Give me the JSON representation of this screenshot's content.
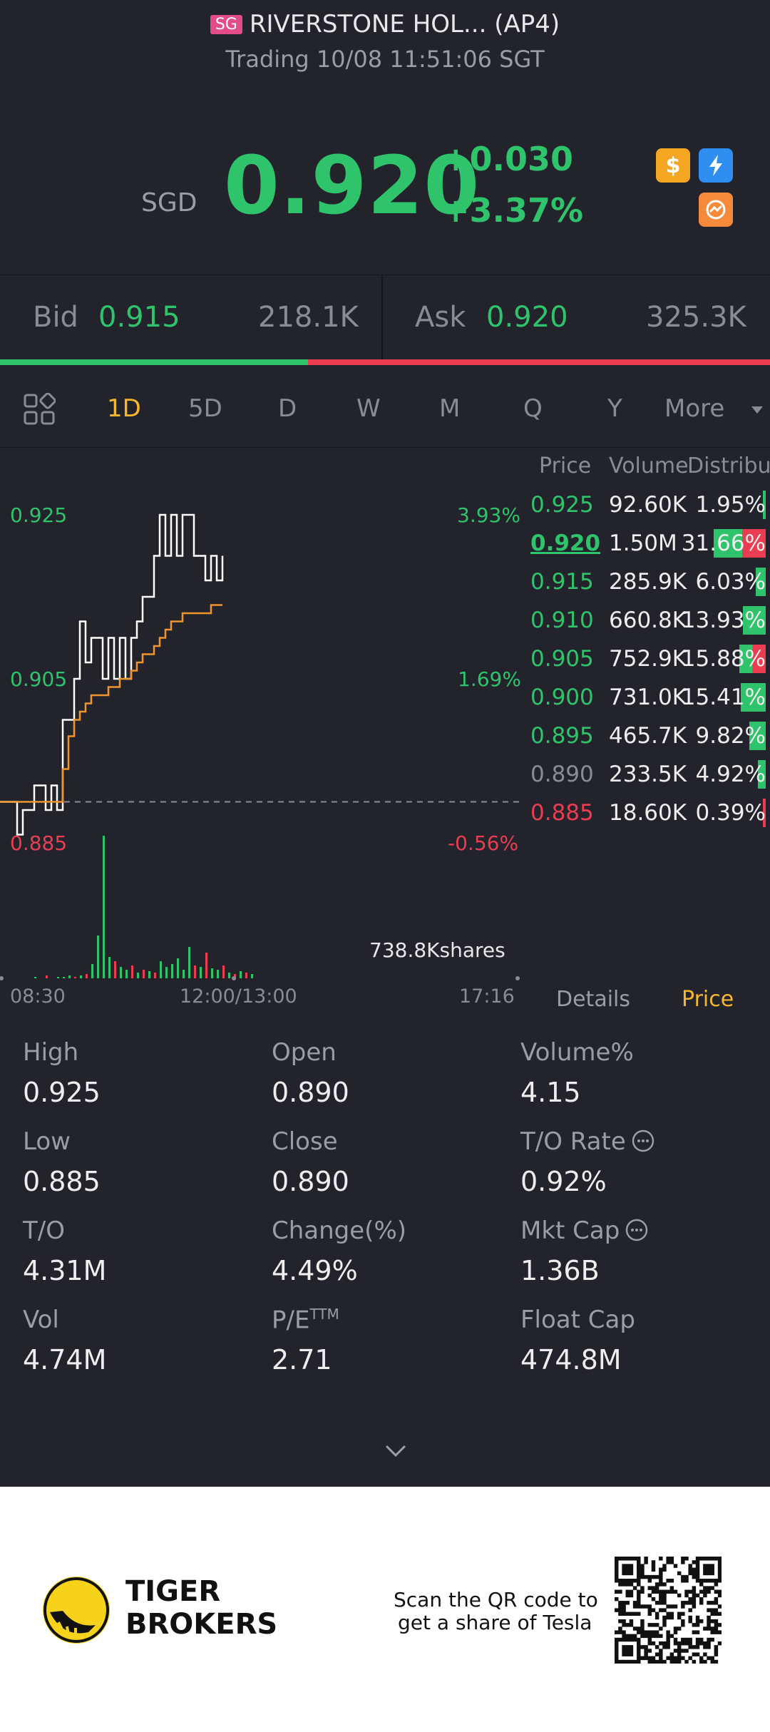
{
  "header": {
    "badge": "SG",
    "title": "RIVERSTONE HOL... (AP4)",
    "status": "Trading 10/08 11:51:06 SGT"
  },
  "quote": {
    "currency": "SGD",
    "price": "0.920",
    "change": "+0.030",
    "change_pct": "+3.37%",
    "badges": [
      "dollar-icon",
      "lightning-icon",
      "shortable-icon"
    ],
    "colors": {
      "up": "#2fc36c",
      "down": "#ea3d52",
      "accent": "#f5b731"
    }
  },
  "bidask": {
    "bid_label": "Bid",
    "bid_price": "0.915",
    "bid_size": "218.1K",
    "ask_label": "Ask",
    "ask_price": "0.920",
    "ask_size": "325.3K",
    "bid_ratio": 0.4
  },
  "tabs": {
    "items": [
      "1D",
      "5D",
      "D",
      "W",
      "M",
      "Q",
      "Y"
    ],
    "active": "1D",
    "more": "More"
  },
  "chart": {
    "price_labels": [
      "0.925",
      "0.905",
      "0.885"
    ],
    "pct_labels": [
      "3.93%",
      "1.69%",
      "-0.56%"
    ],
    "volume_label": "738.8Kshares",
    "time_labels": [
      "08:30",
      "12:00/13:00",
      "17:16"
    ]
  },
  "chart_data": {
    "type": "line",
    "ylim": [
      0.885,
      0.925
    ],
    "prev_close": 0.89,
    "series": [
      {
        "values": [
          0.89,
          0.89,
          0.89,
          0.886,
          0.889,
          0.889,
          0.892,
          0.892,
          0.889,
          0.892,
          0.889,
          0.9,
          0.9,
          0.905,
          0.912,
          0.907,
          0.91,
          0.91,
          0.905,
          0.91,
          0.905,
          0.91,
          0.905,
          0.91,
          0.912,
          0.915,
          0.915,
          0.92,
          0.925,
          0.92,
          0.925,
          0.92,
          0.925,
          0.925,
          0.92,
          0.92,
          0.917,
          0.92,
          0.917,
          0.92
        ]
      },
      {
        "values": [
          0.89,
          0.89,
          0.89,
          0.89,
          0.89,
          0.89,
          0.89,
          0.89,
          0.89,
          0.89,
          0.89,
          0.894,
          0.898,
          0.9,
          0.901,
          0.902,
          0.903,
          0.903,
          0.903,
          0.904,
          0.904,
          0.905,
          0.905,
          0.906,
          0.907,
          0.908,
          0.908,
          0.909,
          0.91,
          0.911,
          0.912,
          0.912,
          0.913,
          0.913,
          0.913,
          0.913,
          0.913,
          0.914,
          0.914,
          0.914
        ]
      }
    ],
    "volume": [
      0,
      1,
      0,
      2,
      0,
      1,
      1,
      2,
      1,
      2,
      3,
      10,
      30,
      100,
      15,
      12,
      8,
      6,
      9,
      4,
      6,
      5,
      4,
      12,
      8,
      10,
      14,
      6,
      22,
      9,
      8,
      18,
      7,
      6,
      9,
      4,
      3,
      5,
      4,
      3
    ]
  },
  "book": {
    "headers": [
      "Price",
      "Volume",
      "Distribu"
    ],
    "rows": [
      {
        "price": "0.925",
        "volume": "92.60K",
        "pct": "1.95%",
        "color": "#2fc36c",
        "bar": 0.0195,
        "bar_color": "#2fc36c"
      },
      {
        "price": "0.920",
        "volume": "1.50M",
        "pct": "31.66%",
        "color": "#2fc36c",
        "bar": 0.3166,
        "bar_color": "#2fc36c",
        "underline": true
      },
      {
        "price": "0.915",
        "volume": "285.9K",
        "pct": "6.03%",
        "color": "#2fc36c",
        "bar": 0.0603,
        "bar_color": "#2fc36c"
      },
      {
        "price": "0.910",
        "volume": "660.8K",
        "pct": "13.93%",
        "color": "#2fc36c",
        "bar": 0.1393,
        "bar_color": "#2fc36c"
      },
      {
        "price": "0.905",
        "volume": "752.9K",
        "pct": "15.88%",
        "color": "#2fc36c",
        "bar": 0.1588,
        "bar_color": "#2fc36c"
      },
      {
        "price": "0.900",
        "volume": "731.0K",
        "pct": "15.41%",
        "color": "#2fc36c",
        "bar": 0.1541,
        "bar_color": "#2fc36c"
      },
      {
        "price": "0.895",
        "volume": "465.7K",
        "pct": "9.82%",
        "color": "#2fc36c",
        "bar": 0.0982,
        "bar_color": "#2fc36c"
      },
      {
        "price": "0.890",
        "volume": "233.5K",
        "pct": "4.92%",
        "color": "#8a8c95",
        "bar": 0.0492,
        "bar_color": "#2fc36c"
      },
      {
        "price": "0.885",
        "volume": "18.60K",
        "pct": "0.39%",
        "color": "#ea3d52",
        "bar": 0.0039,
        "bar_color": "#ea3d52"
      }
    ]
  },
  "panel_tabs": {
    "details": "Details",
    "price": "Price"
  },
  "stats": [
    {
      "label": "High",
      "value": "0.925"
    },
    {
      "label": "Open",
      "value": "0.890"
    },
    {
      "label": "Volume%",
      "value": "4.15"
    },
    {
      "label": "Low",
      "value": "0.885"
    },
    {
      "label": "Close",
      "value": "0.890"
    },
    {
      "label": "T/O Rate",
      "value": "0.92%",
      "info": true
    },
    {
      "label": "T/O",
      "value": "4.31M"
    },
    {
      "label": "Change(%)",
      "value": "4.49%"
    },
    {
      "label": "Mkt Cap",
      "value": "1.36B",
      "info": true
    },
    {
      "label": "Vol",
      "value": "4.74M"
    },
    {
      "label": "P/E",
      "sup": "TTM",
      "value": "2.71"
    },
    {
      "label": "Float Cap",
      "value": "474.8M"
    }
  ],
  "footer": {
    "brand_line1": "TIGER",
    "brand_line2": "BROKERS",
    "promo_line1": "Scan the QR code to",
    "promo_line2": "get a share of Tesla"
  }
}
